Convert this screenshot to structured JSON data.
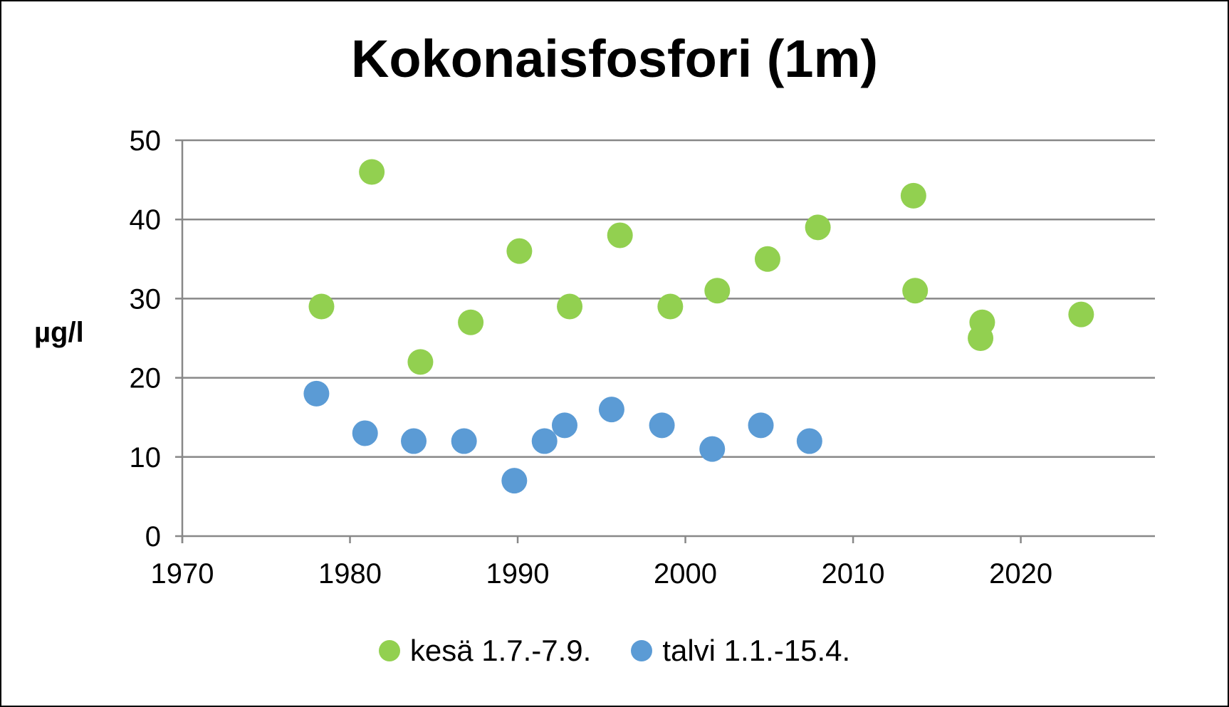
{
  "chart_data": {
    "type": "scatter",
    "title": "Kokonaisfosfori (1m)",
    "xlabel": "",
    "ylabel": "µg/l",
    "xlim": [
      1970,
      2028
    ],
    "ylim": [
      0,
      50
    ],
    "x_ticks": [
      1970,
      1980,
      1990,
      2000,
      2010,
      2020
    ],
    "y_ticks": [
      0,
      10,
      20,
      30,
      40,
      50
    ],
    "grid": true,
    "legend_position": "bottom",
    "series": [
      {
        "name": "kesä 1.7.-7.9.",
        "color": "#92D050",
        "points": [
          {
            "x": 1978.3,
            "y": 29
          },
          {
            "x": 1981.3,
            "y": 46
          },
          {
            "x": 1984.2,
            "y": 22
          },
          {
            "x": 1987.2,
            "y": 27
          },
          {
            "x": 1990.1,
            "y": 36
          },
          {
            "x": 1993.1,
            "y": 29
          },
          {
            "x": 1996.1,
            "y": 38
          },
          {
            "x": 1999.1,
            "y": 29
          },
          {
            "x": 2001.9,
            "y": 31
          },
          {
            "x": 2004.9,
            "y": 35
          },
          {
            "x": 2007.9,
            "y": 39
          },
          {
            "x": 2013.6,
            "y": 43
          },
          {
            "x": 2013.7,
            "y": 31
          },
          {
            "x": 2017.6,
            "y": 25
          },
          {
            "x": 2017.7,
            "y": 27
          },
          {
            "x": 2023.6,
            "y": 28
          }
        ]
      },
      {
        "name": "talvi 1.1.-15.4.",
        "color": "#5B9BD5",
        "points": [
          {
            "x": 1978.0,
            "y": 18
          },
          {
            "x": 1980.9,
            "y": 13
          },
          {
            "x": 1983.8,
            "y": 12
          },
          {
            "x": 1986.8,
            "y": 12
          },
          {
            "x": 1989.8,
            "y": 7
          },
          {
            "x": 1991.6,
            "y": 12
          },
          {
            "x": 1992.8,
            "y": 14
          },
          {
            "x": 1995.6,
            "y": 16
          },
          {
            "x": 1998.6,
            "y": 14
          },
          {
            "x": 2001.6,
            "y": 11
          },
          {
            "x": 2004.5,
            "y": 14
          },
          {
            "x": 2007.4,
            "y": 12
          }
        ]
      }
    ]
  }
}
